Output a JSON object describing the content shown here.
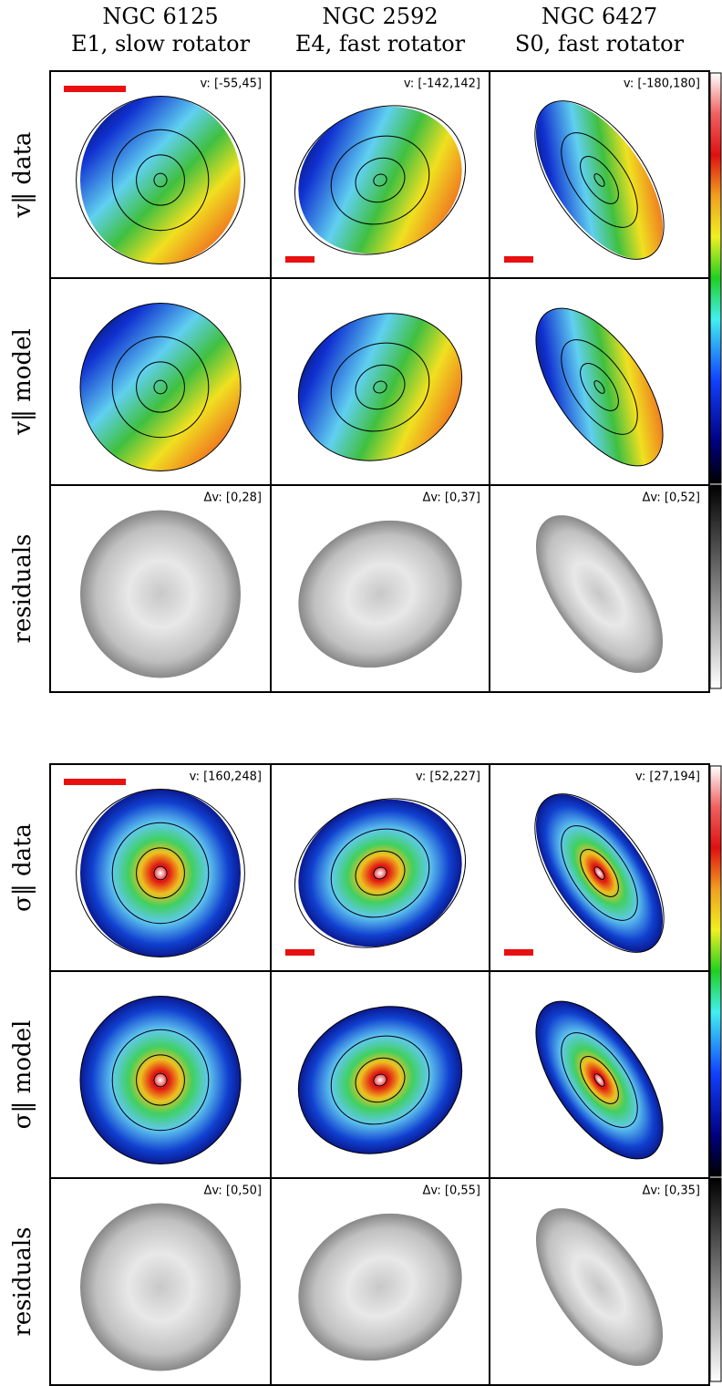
{
  "columns": [
    {
      "name": "NGC 6125",
      "type": "E1, slow rotator"
    },
    {
      "name": "NGC 2592",
      "type": "E4, fast rotator"
    },
    {
      "name": "NGC 6427",
      "type": "S0, fast rotator"
    }
  ],
  "groups": [
    {
      "rows": [
        {
          "label": "v‖ data",
          "ranges": [
            "v: [-55,45]",
            "v: [-142,142]",
            "v: [-180,180]"
          ]
        },
        {
          "label": "v‖ model",
          "ranges": []
        },
        {
          "label": "residuals",
          "ranges": [
            "Δv: [0,28]",
            "Δv: [0,37]",
            "Δv: [0,52]"
          ]
        }
      ]
    },
    {
      "rows": [
        {
          "label": "σ‖ data",
          "ranges": [
            "v: [160,248]",
            "v: [52,227]",
            "v: [27,194]"
          ]
        },
        {
          "label": "σ‖ model",
          "ranges": []
        },
        {
          "label": "residuals",
          "ranges": [
            "Δv: [0,50]",
            "Δv: [0,55]",
            "Δv: [0,35]"
          ]
        }
      ]
    }
  ]
}
